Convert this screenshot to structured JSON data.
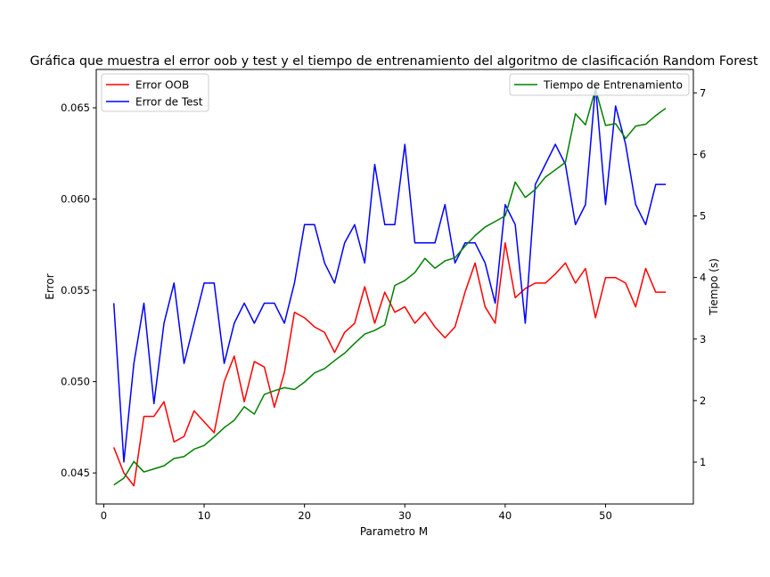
{
  "chart_data": {
    "type": "line",
    "title": "Gráfica que muestra el error oob y test y el tiempo de entrenamiento del algoritmo de clasificación Random Forest",
    "xlabel": "Parametro M",
    "ylabel_left": "Error",
    "ylabel_right": "Tiempo (s)",
    "xlim": [
      -0.75,
      58.75
    ],
    "ylim_left": [
      0.0433,
      0.0671
    ],
    "ylim_right": [
      0.32,
      7.38
    ],
    "x_ticks": [
      "0",
      "10",
      "20",
      "30",
      "40",
      "50"
    ],
    "y_ticks_left": [
      "0.045",
      "0.050",
      "0.055",
      "0.060",
      "0.065"
    ],
    "y_ticks_right": [
      "1",
      "2",
      "3",
      "4",
      "5",
      "6",
      "7"
    ],
    "x": [
      1,
      2,
      3,
      4,
      5,
      6,
      7,
      8,
      9,
      10,
      11,
      12,
      13,
      14,
      15,
      16,
      17,
      18,
      19,
      20,
      21,
      22,
      23,
      24,
      25,
      26,
      27,
      28,
      29,
      30,
      31,
      32,
      33,
      34,
      35,
      36,
      37,
      38,
      39,
      40,
      41,
      42,
      43,
      44,
      45,
      46,
      47,
      48,
      49,
      50,
      51,
      52,
      53,
      54,
      55,
      56
    ],
    "legend_left": [
      "Error OOB",
      "Error de Test"
    ],
    "legend_right": [
      "Tiempo de Entrenamiento"
    ],
    "series": [
      {
        "name": "Error OOB",
        "axis": "left",
        "color": "#ff0000",
        "values": [
          0.0464,
          0.045,
          0.0443,
          0.0481,
          0.0481,
          0.0489,
          0.0467,
          0.047,
          0.0484,
          0.0478,
          0.0472,
          0.05,
          0.0514,
          0.0489,
          0.0511,
          0.0508,
          0.0486,
          0.0505,
          0.0538,
          0.0535,
          0.053,
          0.0527,
          0.0516,
          0.0527,
          0.0532,
          0.0552,
          0.0532,
          0.0549,
          0.0538,
          0.0541,
          0.0532,
          0.0538,
          0.053,
          0.0524,
          0.053,
          0.0549,
          0.0565,
          0.0541,
          0.0532,
          0.0576,
          0.0546,
          0.0551,
          0.0554,
          0.0554,
          0.0559,
          0.0565,
          0.0554,
          0.0562,
          0.0535,
          0.0557,
          0.0557,
          0.0554,
          0.0541,
          0.0562,
          0.0549,
          0.0549
        ]
      },
      {
        "name": "Error de Test",
        "axis": "left",
        "color": "#0000ff",
        "values": [
          0.0543,
          0.0456,
          0.051,
          0.0543,
          0.0488,
          0.0532,
          0.0554,
          0.051,
          0.0532,
          0.0554,
          0.0554,
          0.051,
          0.0532,
          0.0543,
          0.0532,
          0.0543,
          0.0543,
          0.0532,
          0.0554,
          0.0586,
          0.0586,
          0.0565,
          0.0554,
          0.0576,
          0.0586,
          0.0565,
          0.0619,
          0.0586,
          0.0586,
          0.063,
          0.0576,
          0.0576,
          0.0576,
          0.0597,
          0.0565,
          0.0576,
          0.0576,
          0.0565,
          0.0543,
          0.0597,
          0.0586,
          0.0532,
          0.0608,
          0.0619,
          0.063,
          0.0619,
          0.0586,
          0.0597,
          0.0662,
          0.0597,
          0.0651,
          0.063,
          0.0597,
          0.0586,
          0.0608,
          0.0608
        ]
      },
      {
        "name": "Tiempo de Entrenamiento",
        "axis": "right",
        "color": "#008000",
        "values": [
          0.63,
          0.74,
          1.01,
          0.84,
          0.89,
          0.94,
          1.06,
          1.09,
          1.21,
          1.27,
          1.41,
          1.56,
          1.68,
          1.9,
          1.78,
          2.1,
          2.16,
          2.21,
          2.18,
          2.3,
          2.45,
          2.52,
          2.65,
          2.77,
          2.93,
          3.08,
          3.14,
          3.23,
          3.87,
          3.95,
          4.08,
          4.31,
          4.15,
          4.27,
          4.32,
          4.51,
          4.68,
          4.82,
          4.91,
          5.0,
          5.55,
          5.3,
          5.43,
          5.63,
          5.75,
          5.87,
          6.66,
          6.48,
          7.06,
          6.47,
          6.5,
          6.26,
          6.46,
          6.49,
          6.63,
          6.75
        ]
      }
    ]
  }
}
